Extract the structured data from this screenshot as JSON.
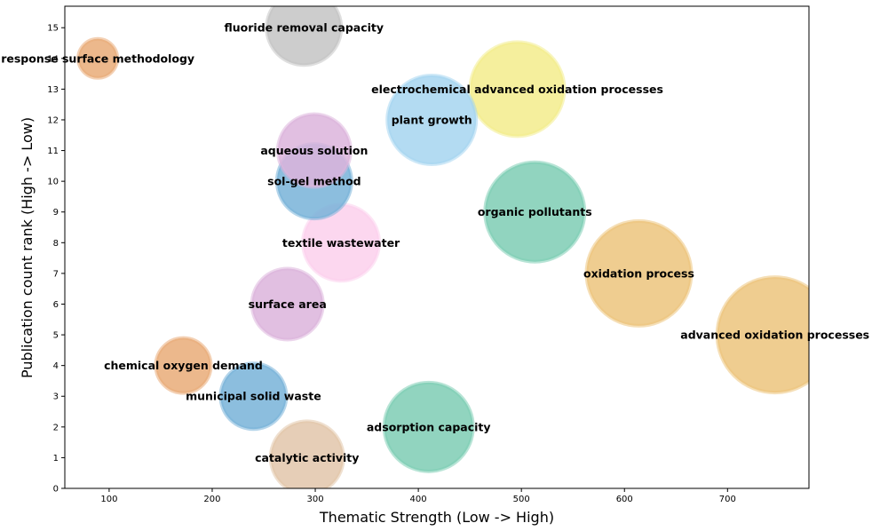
{
  "chart_data": {
    "type": "scatter",
    "xlabel": "Thematic Strength (Low -> High)",
    "ylabel": "Publication count rank (High -> Low)",
    "xlim": [
      57,
      779
    ],
    "ylim": [
      0,
      15.7
    ],
    "xticks": [
      100,
      200,
      300,
      400,
      500,
      600,
      700
    ],
    "yticks": [
      0,
      1,
      2,
      3,
      4,
      5,
      6,
      7,
      8,
      9,
      10,
      11,
      12,
      13,
      14,
      15
    ],
    "grid": false,
    "points": [
      {
        "label": "advanced oxidation processes",
        "x": 746,
        "y": 5,
        "size": 65,
        "color": "#ecc47c"
      },
      {
        "label": "oxidation process",
        "x": 614,
        "y": 7,
        "size": 59,
        "color": "#ecc47c"
      },
      {
        "label": "electrochemical advanced oxidation processes",
        "x": 496,
        "y": 13,
        "size": 53,
        "color": "#f3ec8c"
      },
      {
        "label": "organic pollutants",
        "x": 513,
        "y": 9,
        "size": 56,
        "color": "#7ecdb4"
      },
      {
        "label": "plant growth",
        "x": 413,
        "y": 12,
        "size": 50,
        "color": "#a6d5f0"
      },
      {
        "label": "adsorption capacity",
        "x": 410,
        "y": 2,
        "size": 50,
        "color": "#7ecdb4"
      },
      {
        "label": "fluoride removal capacity",
        "x": 289,
        "y": 15,
        "size": 42,
        "color": "#c4c4c4"
      },
      {
        "label": "catalytic activity",
        "x": 292,
        "y": 1,
        "size": 41,
        "color": "#e2c6aa"
      },
      {
        "label": "textile wastewater",
        "x": 325,
        "y": 8,
        "size": 43,
        "color": "#fbd0ec"
      },
      {
        "label": "sol-gel method",
        "x": 299,
        "y": 10,
        "size": 42,
        "color": "#78b3d8"
      },
      {
        "label": "aqueous solution",
        "x": 299,
        "y": 11,
        "size": 41,
        "color": "#dcb4dc"
      },
      {
        "label": "surface area",
        "x": 273,
        "y": 6,
        "size": 40,
        "color": "#dcb4dc"
      },
      {
        "label": "municipal solid waste",
        "x": 240,
        "y": 3,
        "size": 37,
        "color": "#78b3d8"
      },
      {
        "label": "chemical oxygen demand",
        "x": 172,
        "y": 4,
        "size": 31,
        "color": "#e9ab78"
      },
      {
        "label": "response surface methodology",
        "x": 89,
        "y": 14,
        "size": 22,
        "color": "#e9ab78"
      }
    ]
  }
}
